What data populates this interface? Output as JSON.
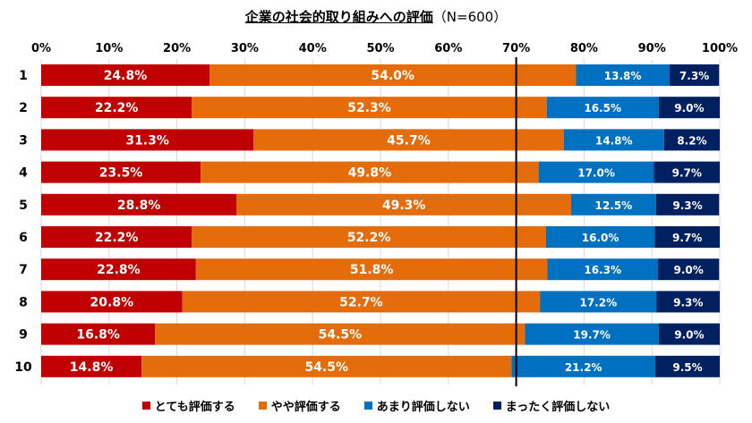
{
  "chart_data": {
    "type": "bar",
    "orientation": "horizontal",
    "stacked": true,
    "title": "企業の社会的取り組みへの評価",
    "title_note": "（N=600）",
    "categories": [
      "1",
      "2",
      "3",
      "4",
      "5",
      "6",
      "7",
      "8",
      "9",
      "10"
    ],
    "series": [
      {
        "name": "とても評価する",
        "color": "#C00000",
        "values": [
          24.8,
          22.2,
          31.3,
          23.5,
          28.8,
          22.2,
          22.8,
          20.8,
          16.8,
          14.8
        ]
      },
      {
        "name": "やや評価する",
        "color": "#E46C0A",
        "values": [
          54.0,
          52.3,
          45.7,
          49.8,
          49.3,
          52.2,
          51.8,
          52.7,
          54.5,
          54.5
        ]
      },
      {
        "name": "あまり評価しない",
        "color": "#0070C0",
        "values": [
          13.8,
          16.5,
          14.8,
          17.0,
          12.5,
          16.0,
          16.3,
          17.2,
          19.7,
          21.2
        ]
      },
      {
        "name": "まったく評価しない",
        "color": "#002060",
        "values": [
          7.3,
          9.0,
          8.2,
          9.7,
          9.3,
          9.7,
          9.0,
          9.3,
          9.0,
          9.5
        ]
      }
    ],
    "value_suffix": "%",
    "xlim": [
      0,
      100
    ],
    "x_ticks": [
      "0%",
      "10%",
      "20%",
      "30%",
      "40%",
      "50%",
      "60%",
      "70%",
      "80%",
      "90%",
      "100%"
    ],
    "reference_line": {
      "value": 70,
      "color": "#000000"
    },
    "gridlines": true,
    "legend_position": "bottom"
  }
}
